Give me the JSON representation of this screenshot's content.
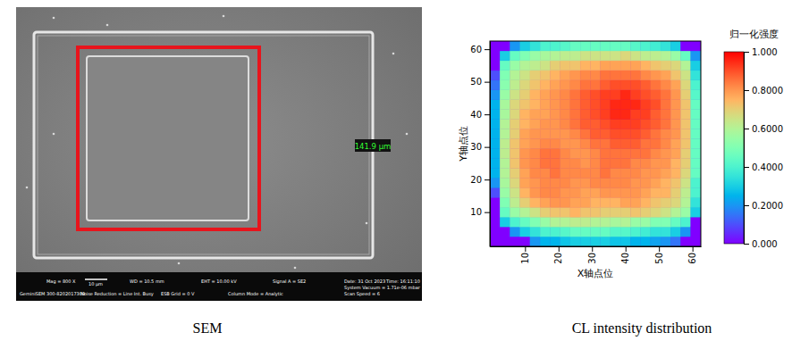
{
  "sem_image": {
    "measurement": "141.9 µm",
    "scale_bar": "10 µm",
    "info": [
      "Mag = 800 X",
      "WD = 10.5 mm",
      "EHT = 10.00 kV",
      "Signal A = SE2",
      "Date: 31 Oct 2023",
      "Time: 16:11:10",
      "System Vacuum = 1.71e-06 mbar",
      "GeminiSEM 300-8202017309",
      "Noise Reduction = Line Int. Busy",
      "ESB Grid = 0 V",
      "Column Mode = Analytic",
      "Scan Speed = 6"
    ],
    "caption": "SEM"
  },
  "chart_data": {
    "type": "heatmap",
    "caption": "CL intensity distribution",
    "x_label": "X轴点位",
    "y_label": "Y轴点位",
    "x": [
      1,
      4,
      7,
      10,
      13,
      16,
      19,
      22,
      25,
      28,
      31,
      34,
      37,
      40,
      43,
      46,
      49,
      52,
      55,
      58,
      61
    ],
    "y": [
      1,
      4,
      7,
      10,
      13,
      16,
      19,
      22,
      25,
      28,
      31,
      34,
      37,
      40,
      43,
      46,
      49,
      52,
      55,
      58,
      61
    ],
    "xlim": [
      -0.5,
      62.5
    ],
    "ylim": [
      -0.5,
      62.5
    ],
    "xticks": [
      10,
      20,
      30,
      40,
      50,
      60
    ],
    "yticks": [
      10,
      20,
      30,
      40,
      50,
      60
    ],
    "cells": [
      [
        0,
        0,
        0,
        0,
        0.2,
        0.25,
        0.25,
        0.28,
        0.3,
        0.3,
        0.3,
        0.3,
        0.28,
        0.28,
        0.25,
        0.25,
        0.22,
        0.2,
        0.15,
        0,
        0
      ],
      [
        0,
        0,
        0.2,
        0.3,
        0.35,
        0.4,
        0.4,
        0.42,
        0.45,
        0.45,
        0.45,
        0.45,
        0.42,
        0.42,
        0.4,
        0.38,
        0.35,
        0.35,
        0.3,
        0.2,
        0
      ],
      [
        0,
        0.3,
        0.4,
        0.45,
        0.5,
        0.55,
        0.6,
        0.6,
        0.62,
        0.62,
        0.6,
        0.6,
        0.58,
        0.6,
        0.55,
        0.55,
        0.5,
        0.5,
        0.45,
        0.4,
        0
      ],
      [
        0,
        0.45,
        0.55,
        0.6,
        0.65,
        0.7,
        0.72,
        0.72,
        0.75,
        0.72,
        0.72,
        0.7,
        0.7,
        0.7,
        0.72,
        0.7,
        0.68,
        0.65,
        0.6,
        0.55,
        0.3
      ],
      [
        0,
        0.5,
        0.62,
        0.7,
        0.75,
        0.78,
        0.8,
        0.8,
        0.78,
        0.78,
        0.75,
        0.75,
        0.75,
        0.78,
        0.78,
        0.75,
        0.72,
        0.7,
        0.68,
        0.6,
        0.35
      ],
      [
        0.1,
        0.55,
        0.65,
        0.75,
        0.8,
        0.82,
        0.82,
        0.8,
        0.8,
        0.78,
        0.78,
        0.8,
        0.8,
        0.8,
        0.8,
        0.78,
        0.75,
        0.75,
        0.7,
        0.62,
        0.4
      ],
      [
        0.2,
        0.58,
        0.68,
        0.78,
        0.8,
        0.82,
        0.82,
        0.82,
        0.8,
        0.8,
        0.82,
        0.82,
        0.82,
        0.82,
        0.8,
        0.8,
        0.78,
        0.75,
        0.72,
        0.65,
        0.4
      ],
      [
        0.25,
        0.6,
        0.7,
        0.78,
        0.82,
        0.82,
        0.85,
        0.82,
        0.82,
        0.82,
        0.82,
        0.85,
        0.82,
        0.82,
        0.82,
        0.8,
        0.8,
        0.78,
        0.75,
        0.68,
        0.45
      ],
      [
        0.25,
        0.6,
        0.72,
        0.8,
        0.82,
        0.85,
        0.85,
        0.82,
        0.82,
        0.8,
        0.82,
        0.85,
        0.85,
        0.85,
        0.82,
        0.82,
        0.8,
        0.8,
        0.75,
        0.7,
        0.45
      ],
      [
        0.25,
        0.62,
        0.72,
        0.8,
        0.82,
        0.85,
        0.85,
        0.82,
        0.8,
        0.8,
        0.82,
        0.85,
        0.85,
        0.85,
        0.85,
        0.85,
        0.82,
        0.8,
        0.78,
        0.7,
        0.45
      ],
      [
        0.25,
        0.62,
        0.72,
        0.78,
        0.8,
        0.82,
        0.82,
        0.8,
        0.8,
        0.82,
        0.85,
        0.85,
        0.88,
        0.88,
        0.88,
        0.85,
        0.85,
        0.82,
        0.78,
        0.72,
        0.45
      ],
      [
        0.25,
        0.6,
        0.7,
        0.78,
        0.8,
        0.8,
        0.8,
        0.8,
        0.82,
        0.85,
        0.88,
        0.88,
        0.9,
        0.9,
        0.9,
        0.88,
        0.85,
        0.82,
        0.8,
        0.72,
        0.45
      ],
      [
        0.25,
        0.6,
        0.7,
        0.75,
        0.78,
        0.8,
        0.8,
        0.82,
        0.85,
        0.88,
        0.88,
        0.9,
        0.92,
        0.92,
        0.92,
        0.9,
        0.88,
        0.85,
        0.8,
        0.72,
        0.45
      ],
      [
        0.25,
        0.58,
        0.68,
        0.75,
        0.78,
        0.78,
        0.8,
        0.82,
        0.85,
        0.88,
        0.9,
        0.92,
        0.95,
        0.95,
        0.92,
        0.92,
        0.88,
        0.85,
        0.8,
        0.72,
        0.45
      ],
      [
        0.25,
        0.58,
        0.68,
        0.72,
        0.75,
        0.78,
        0.8,
        0.82,
        0.85,
        0.88,
        0.9,
        0.92,
        0.95,
        0.95,
        0.95,
        0.92,
        0.9,
        0.85,
        0.8,
        0.72,
        0.45
      ],
      [
        0.2,
        0.55,
        0.65,
        0.7,
        0.75,
        0.78,
        0.8,
        0.82,
        0.85,
        0.88,
        0.9,
        0.92,
        0.92,
        0.95,
        0.92,
        0.9,
        0.88,
        0.85,
        0.8,
        0.7,
        0.42
      ],
      [
        0.15,
        0.52,
        0.62,
        0.68,
        0.72,
        0.75,
        0.78,
        0.8,
        0.82,
        0.85,
        0.85,
        0.88,
        0.9,
        0.9,
        0.9,
        0.88,
        0.85,
        0.82,
        0.78,
        0.68,
        0.4
      ],
      [
        0.1,
        0.5,
        0.6,
        0.65,
        0.7,
        0.72,
        0.75,
        0.78,
        0.8,
        0.82,
        0.82,
        0.85,
        0.85,
        0.85,
        0.85,
        0.82,
        0.8,
        0.78,
        0.72,
        0.65,
        0.35
      ],
      [
        0,
        0.45,
        0.55,
        0.6,
        0.62,
        0.65,
        0.7,
        0.72,
        0.72,
        0.75,
        0.75,
        0.78,
        0.78,
        0.78,
        0.78,
        0.75,
        0.72,
        0.7,
        0.68,
        0.6,
        0.3
      ],
      [
        0,
        0.3,
        0.45,
        0.5,
        0.55,
        0.58,
        0.6,
        0.62,
        0.62,
        0.65,
        0.65,
        0.65,
        0.65,
        0.68,
        0.65,
        0.62,
        0.62,
        0.6,
        0.55,
        0.45,
        0.2
      ],
      [
        0,
        0,
        0.2,
        0.3,
        0.35,
        0.4,
        0.4,
        0.42,
        0.45,
        0.45,
        0.45,
        0.45,
        0.45,
        0.45,
        0.42,
        0.4,
        0.38,
        0.35,
        0.3,
        0,
        0
      ]
    ],
    "colorbar": {
      "label": "归一化强度",
      "range": [
        0,
        1
      ],
      "ticks": [
        {
          "value": 0,
          "label": "0.000"
        },
        {
          "value": 0.2,
          "label": "0.2000"
        },
        {
          "value": 0.4,
          "label": "0.4000"
        },
        {
          "value": 0.6,
          "label": "0.6000"
        },
        {
          "value": 0.8,
          "label": "0.8000"
        },
        {
          "value": 1,
          "label": "1.000"
        }
      ]
    }
  }
}
